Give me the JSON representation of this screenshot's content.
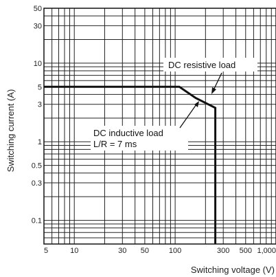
{
  "chart_data": {
    "type": "line",
    "title": "",
    "xlabel": "Switching voltage (V)",
    "ylabel": "Switching current (A)",
    "x_scale": "log",
    "y_scale": "log",
    "xlim": [
      5,
      1000
    ],
    "ylim": [
      0.05,
      50
    ],
    "grid": true,
    "x_ticks": [
      5,
      10,
      30,
      50,
      100,
      300,
      500,
      1000
    ],
    "x_tick_labels": [
      "5",
      "10",
      "30",
      "50",
      "100",
      "300",
      "500",
      "1,000"
    ],
    "y_ticks": [
      0.1,
      0.3,
      0.5,
      1,
      3,
      5,
      10,
      30,
      50
    ],
    "y_tick_labels": [
      "0.1",
      "0.3",
      "0.5",
      "1",
      "3",
      "5",
      "10",
      "30",
      "50"
    ],
    "series": [
      {
        "name": "DC inductive load L/R = 7 ms",
        "color": "#111111",
        "x": [
          5,
          110,
          160,
          250,
          250
        ],
        "y": [
          5,
          5,
          3.6,
          2.7,
          0.05
        ]
      }
    ],
    "annotations": [
      {
        "text": "DC resistive load"
      },
      {
        "text": "DC inductive load"
      },
      {
        "text": "L/R = 7 ms"
      }
    ]
  }
}
